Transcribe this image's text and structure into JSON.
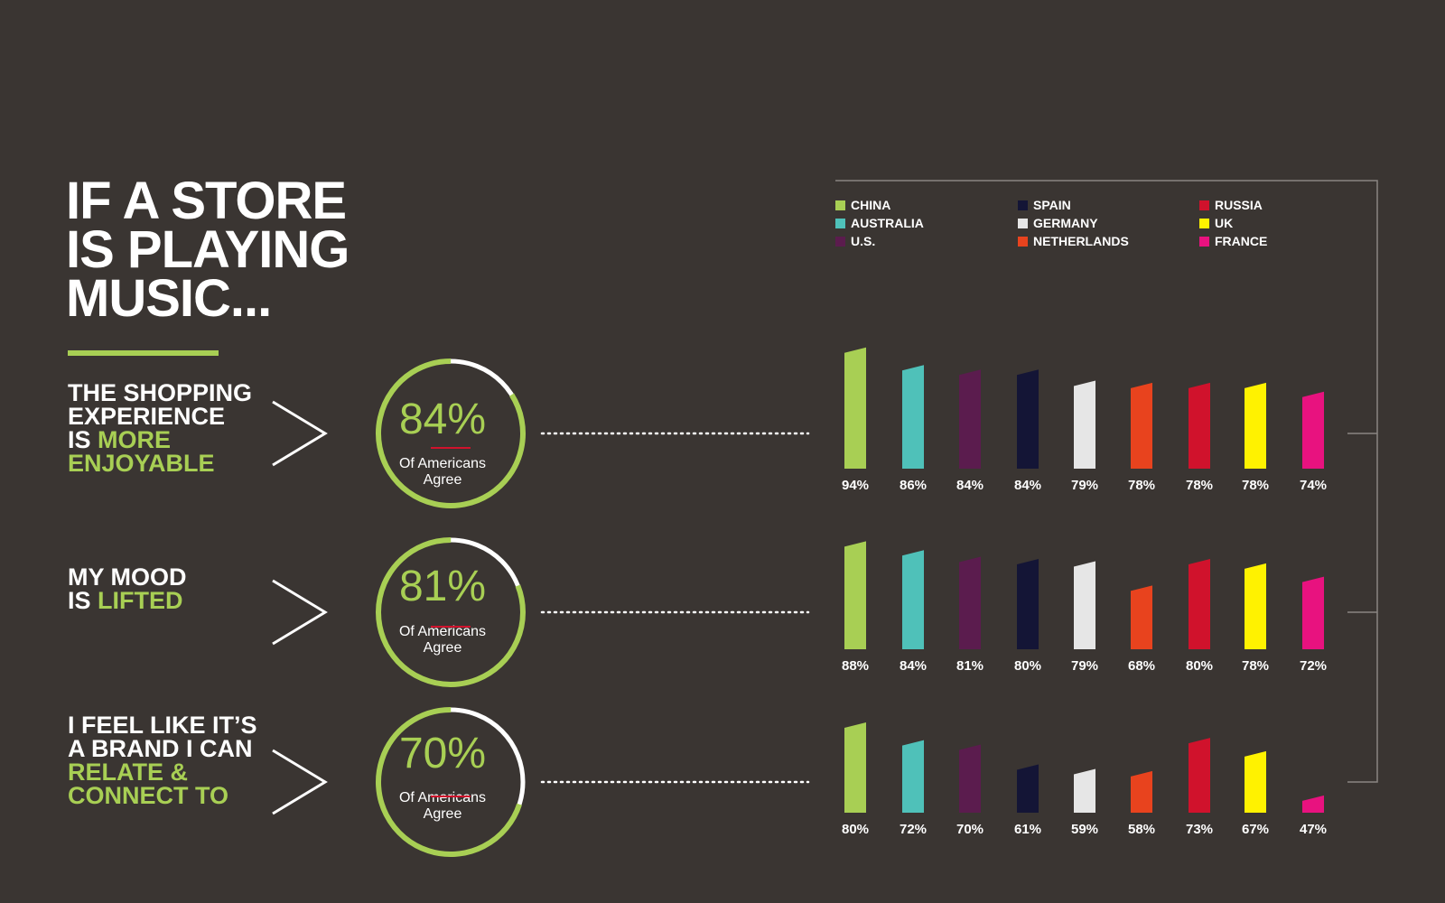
{
  "title_lines": [
    "IF A STORE",
    "IS PLAYING",
    "MUSIC..."
  ],
  "colors": {
    "background": "#3a3532",
    "accent_green": "#a8cf54",
    "divider_red": "#d0122c",
    "ring_track": "#ffffff"
  },
  "statements": [
    {
      "lines": [
        {
          "text": "THE SHOPPING",
          "highlight": false
        },
        {
          "text": "EXPERIENCE",
          "highlight": false
        },
        {
          "text": "IS ",
          "highlight_text": "MORE",
          "highlight": "partial"
        },
        {
          "text": "ENJOYABLE",
          "highlight": true
        }
      ],
      "stat": "84%",
      "stat_value": 84,
      "sub_lines": [
        "Of Americans",
        "Agree"
      ]
    },
    {
      "lines": [
        {
          "text": "MY MOOD",
          "highlight": false
        },
        {
          "text": "IS ",
          "highlight_text": "LIFTED",
          "highlight": "partial"
        }
      ],
      "stat": "81%",
      "stat_value": 81,
      "sub_lines": [
        "Of Americans",
        "Agree"
      ]
    },
    {
      "lines": [
        {
          "text": "I FEEL LIKE IT’S",
          "highlight": false
        },
        {
          "text": "A BRAND I CAN",
          "highlight": false
        },
        {
          "text": "RELATE &",
          "highlight": true
        },
        {
          "text": "CONNECT TO",
          "highlight": true
        }
      ],
      "stat": "70%",
      "stat_value": 70,
      "sub_lines": [
        "Of Americans",
        "Agree"
      ]
    }
  ],
  "legend": [
    {
      "name": "CHINA",
      "color": "#a8cf54"
    },
    {
      "name": "AUSTRALIA",
      "color": "#4fc1b9"
    },
    {
      "name": "U.S.",
      "color": "#5b1c4e"
    },
    {
      "name": "SPAIN",
      "color": "#141536"
    },
    {
      "name": "GERMANY",
      "color": "#e6e6e6"
    },
    {
      "name": "NETHERLANDS",
      "color": "#e8431e"
    },
    {
      "name": "RUSSIA",
      "color": "#d0122c"
    },
    {
      "name": "UK",
      "color": "#fff200"
    },
    {
      "name": "FRANCE",
      "color": "#e8127f"
    }
  ],
  "chart_data": {
    "type": "bar",
    "categories": [
      "CHINA",
      "AUSTRALIA",
      "U.S.",
      "SPAIN",
      "GERMANY",
      "NETHERLANDS",
      "RUSSIA",
      "UK",
      "FRANCE"
    ],
    "groups": [
      {
        "statement": "THE SHOPPING EXPERIENCE IS MORE ENJOYABLE",
        "values": [
          94,
          86,
          84,
          84,
          79,
          78,
          78,
          78,
          74
        ],
        "labels": [
          "94%",
          "86%",
          "84%",
          "84%",
          "79%",
          "78%",
          "78%",
          "78%",
          "74%"
        ]
      },
      {
        "statement": "MY MOOD IS LIFTED",
        "values": [
          88,
          84,
          81,
          80,
          79,
          68,
          80,
          78,
          72
        ],
        "labels": [
          "88%",
          "84%",
          "81%",
          "80%",
          "79%",
          "68%",
          "80%",
          "78%",
          "72%"
        ]
      },
      {
        "statement": "I FEEL LIKE IT’S A BRAND I CAN RELATE & CONNECT TO",
        "values": [
          80,
          72,
          70,
          61,
          59,
          58,
          73,
          67,
          47
        ],
        "labels": [
          "80%",
          "72%",
          "70%",
          "61%",
          "59%",
          "58%",
          "73%",
          "67%",
          "47%"
        ]
      }
    ],
    "legend_position": "top",
    "grid": false
  }
}
